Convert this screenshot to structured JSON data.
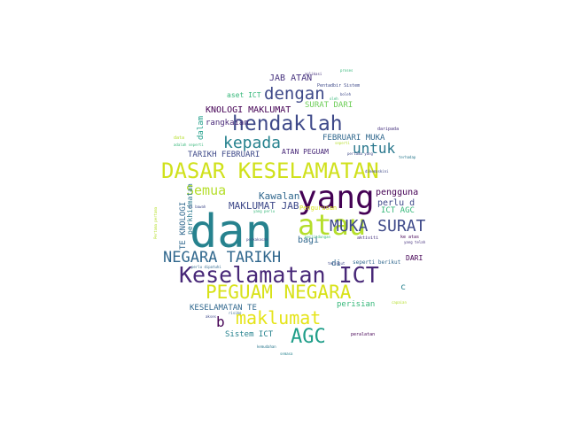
{
  "words": {
    "dan": "dan",
    "yang": "yang",
    "atau": "atau",
    "dasar_keselamatan": "DASAR KESELAMATAN",
    "keselamatan_ict": "Keselamatan ICT",
    "peguam_negara": "PEGUAM NEGARA",
    "hendaklah": "hendaklah",
    "muka_surat": "MUKA SURAT",
    "negara_tarikh": "NEGARA TARIKH",
    "maklumat": "maklumat",
    "agc": "AGC",
    "dengan": "dengan",
    "kepada": "kepada",
    "untuk": "untuk",
    "semua": "Semua",
    "kawalan": "Kawalan",
    "maklumat_jab": "MAKLUMAT JAB",
    "jab_atan": "JAB ATAN",
    "knologi_maklumat": "KNOLOGI MAKLUMAT",
    "surat_dari": "SURAT DARI",
    "aset_ict": "aset ICT",
    "rangkaian": "rangkaian",
    "dalam": "dalam",
    "februari_muka": "FEBRUARI MUKA",
    "tarikh_februari": "TARIKH FEBRUARI",
    "atan_peguam": "ATAN PEGUAM",
    "te_knologi": "TE KNOLOGI",
    "perkhidmatan": "perkhidmatan",
    "pengguna": "pengguna",
    "perlu_d": "perlu d",
    "ict_agc": "ICT AGC",
    "bagi": "bagi",
    "di": "di",
    "dari": "DARI",
    "c": "c",
    "b": "b",
    "keselamatan_te": "KESELAMATAN TE",
    "perisian": "perisian",
    "sistem_ict": "Sistem ICT",
    "pengurusan": "Pengurusan",
    "aktiviti": "aktiviti",
    "ke_atas": "ke atas",
    "seperti_berikut": "seperti berikut",
    "peralatan": "peralatan",
    "pentadbir_sistem": "Pentadbir Sistem",
    "daripada": "daripada",
    "data": "data",
    "adalah_seperti": "adalah seperti",
    "aplikasi": "aplikasi",
    "proses": "proses",
    "boleh": "boleh",
    "berkaitan": "berkaitan",
    "perlu_yang_perlu": "yang perlu",
    "perkakasan": "perkakasan",
    "perlindungan": "perlindungan",
    "yang_telah": "yang telah",
    "terhadap": "terhadap",
    "pertama_pertama": "Pertama pertama",
    "capaian": "capaian",
    "oleh": "oleh",
    "seperti": "seperti",
    "pertama_yang": "pertama yang",
    "di_bawah": "di bawah",
    "tersebut": "tersebut",
    "dikemaskini": "dikemaskini",
    "perlu_dipatuhi": "perlu dipatuhi",
    "akses": "akses",
    "risiko": "risiko",
    "pengguna_pengguna": "pengguna",
    "ke_dalam": "ke dalam",
    "dan_kad": "dan kad",
    "kemudahan": "kemudahan",
    "ini": "ini",
    "pelaksanaan": "pelaksanaan",
    "ancaman": "ancaman",
    "pelan": "pelan",
    "maklumat_2": "dalam",
    "semasa": "semasa"
  },
  "colors": {
    "background": "#ffffff",
    "dark_purple": "#440154",
    "purple": "#482878",
    "indigo": "#3e4989",
    "blue": "#31688e",
    "teal": "#26828e",
    "green_teal": "#1f9e89",
    "green": "#35b779",
    "light_green": "#6ece58",
    "yellow_green": "#b5de2b",
    "yellow": "#fde725"
  }
}
